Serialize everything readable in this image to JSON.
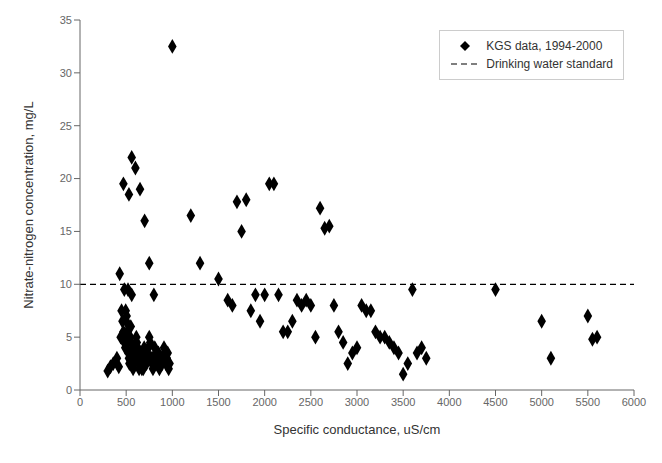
{
  "chart_data": {
    "type": "scatter",
    "xlabel": "Specific conductance, uS/cm",
    "ylabel": "Nitrate-nitrogen concentration, mg/L",
    "xlim": [
      0,
      6000
    ],
    "ylim": [
      0,
      35
    ],
    "xticks": [
      0,
      500,
      1000,
      1500,
      2000,
      2500,
      3000,
      3500,
      4000,
      4500,
      5000,
      5500,
      6000
    ],
    "yticks": [
      0,
      5,
      10,
      15,
      20,
      25,
      30,
      35
    ],
    "grid": false,
    "legend": "upper right",
    "series": [
      {
        "name": "KGS data, 1994-2000",
        "type": "scatter",
        "color": "#000000",
        "marker": "diamond",
        "x": [
          300,
          330,
          360,
          400,
          420,
          440,
          450,
          460,
          470,
          480,
          490,
          495,
          500,
          505,
          510,
          515,
          520,
          525,
          530,
          535,
          540,
          545,
          550,
          555,
          560,
          565,
          570,
          575,
          580,
          585,
          590,
          595,
          600,
          605,
          610,
          615,
          620,
          625,
          630,
          635,
          640,
          645,
          650,
          655,
          660,
          665,
          670,
          675,
          680,
          685,
          690,
          695,
          700,
          710,
          720,
          730,
          740,
          750,
          760,
          770,
          780,
          790,
          800,
          810,
          820,
          830,
          840,
          850,
          860,
          870,
          880,
          890,
          900,
          910,
          920,
          930,
          940,
          950,
          960,
          970,
          430,
          470,
          530,
          560,
          600,
          650,
          700,
          750,
          800,
          480,
          520,
          560,
          1000,
          1200,
          1300,
          1500,
          1600,
          1650,
          1700,
          1750,
          1800,
          1850,
          1900,
          1950,
          2000,
          2050,
          2100,
          2150,
          2200,
          2250,
          2300,
          2350,
          2400,
          2450,
          2500,
          2550,
          2600,
          2650,
          2700,
          2750,
          2800,
          2850,
          2900,
          2950,
          3000,
          3050,
          3100,
          3150,
          3200,
          3250,
          3300,
          3350,
          3400,
          3450,
          3500,
          3550,
          3600,
          3650,
          3700,
          3750,
          4500,
          5000,
          5100,
          5500,
          5550,
          5600
        ],
        "values": [
          1.8,
          2.2,
          2.5,
          3.0,
          2.2,
          5.0,
          7.5,
          6.5,
          5.5,
          4.5,
          4.0,
          7.5,
          6.5,
          7.0,
          5.5,
          5.0,
          4.5,
          3.5,
          3.0,
          2.5,
          3.5,
          5.0,
          6.0,
          4.5,
          3.0,
          2.5,
          3.5,
          2.0,
          2.5,
          3.0,
          3.5,
          4.0,
          3.0,
          4.0,
          5.0,
          4.5,
          3.5,
          4.0,
          3.0,
          2.5,
          2.0,
          2.5,
          3.0,
          3.5,
          2.5,
          3.0,
          2.0,
          2.5,
          3.0,
          2.0,
          2.5,
          4.0,
          3.5,
          3.0,
          2.5,
          3.5,
          4.0,
          5.0,
          4.5,
          3.0,
          2.5,
          2.0,
          3.0,
          4.0,
          3.5,
          2.5,
          3.0,
          3.5,
          2.0,
          2.5,
          3.0,
          2.5,
          3.0,
          4.0,
          3.5,
          2.5,
          3.0,
          3.5,
          2.0,
          2.5,
          11.0,
          19.5,
          18.5,
          22.0,
          21.0,
          19.0,
          16.0,
          12.0,
          9.0,
          9.5,
          9.5,
          9.0,
          32.5,
          16.5,
          12.0,
          10.5,
          8.5,
          8.0,
          17.8,
          15.0,
          18.0,
          7.5,
          9.0,
          6.5,
          9.0,
          19.5,
          19.5,
          9.0,
          5.5,
          5.5,
          6.5,
          8.5,
          8.0,
          8.5,
          8.0,
          5.0,
          17.2,
          15.3,
          15.5,
          8.0,
          5.5,
          4.5,
          2.5,
          3.5,
          4.0,
          8.0,
          7.5,
          7.5,
          5.5,
          5.0,
          5.0,
          4.5,
          4.0,
          3.5,
          1.5,
          2.5,
          9.5,
          3.5,
          4.0,
          3.0,
          9.5,
          6.5,
          3.0,
          7.0,
          4.8,
          5.0
        ]
      },
      {
        "name": "Drinking water standard",
        "type": "hline",
        "color": "#000000",
        "line_style": "dashed",
        "values": [
          10
        ]
      }
    ]
  }
}
